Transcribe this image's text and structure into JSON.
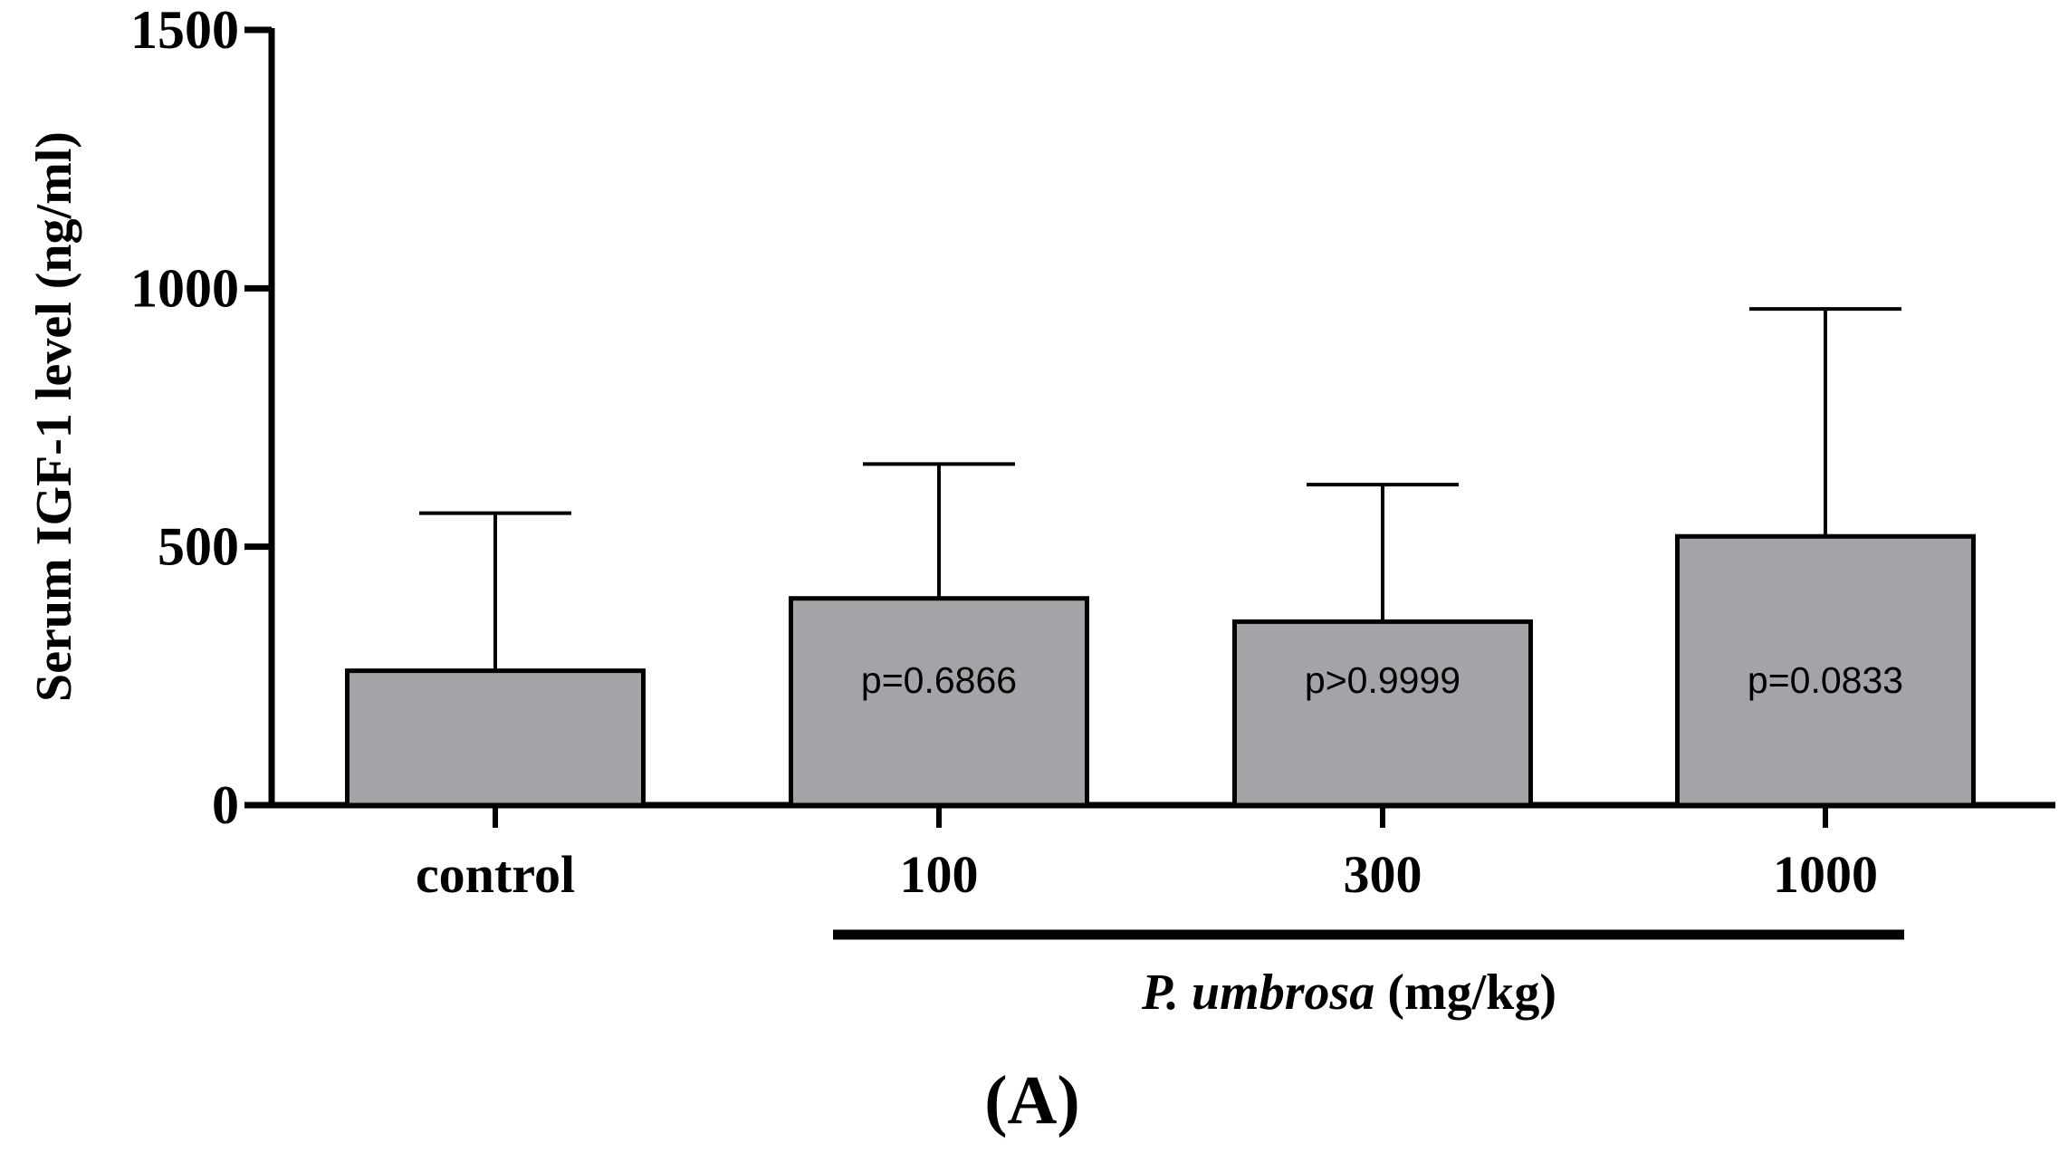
{
  "chart_data": {
    "type": "bar",
    "title": "",
    "ylabel": "Serum IGF-1 level (ng/ml)",
    "xlabel": {
      "italic_part": "P. umbrosa",
      "rest": " (mg/kg)"
    },
    "panel_label": "(A)",
    "ylim": [
      0,
      1500
    ],
    "yticks": [
      {
        "value": 0,
        "label": "0"
      },
      {
        "value": 500,
        "label": "500"
      },
      {
        "value": 1000,
        "label": "1000"
      },
      {
        "value": 1500,
        "label": "1500"
      }
    ],
    "categories": [
      "control",
      "100",
      "300",
      "1000"
    ],
    "values": [
      260,
      400,
      355,
      520
    ],
    "error_upper": [
      565,
      660,
      620,
      960
    ],
    "annotations": [
      "",
      "p=0.6866",
      "p>0.9999",
      "p=0.0833"
    ],
    "group_bracket": {
      "from_category": 1,
      "to_category": 3
    },
    "colors": {
      "bar_fill": "#a3a4a8",
      "stroke": "#000000"
    }
  }
}
